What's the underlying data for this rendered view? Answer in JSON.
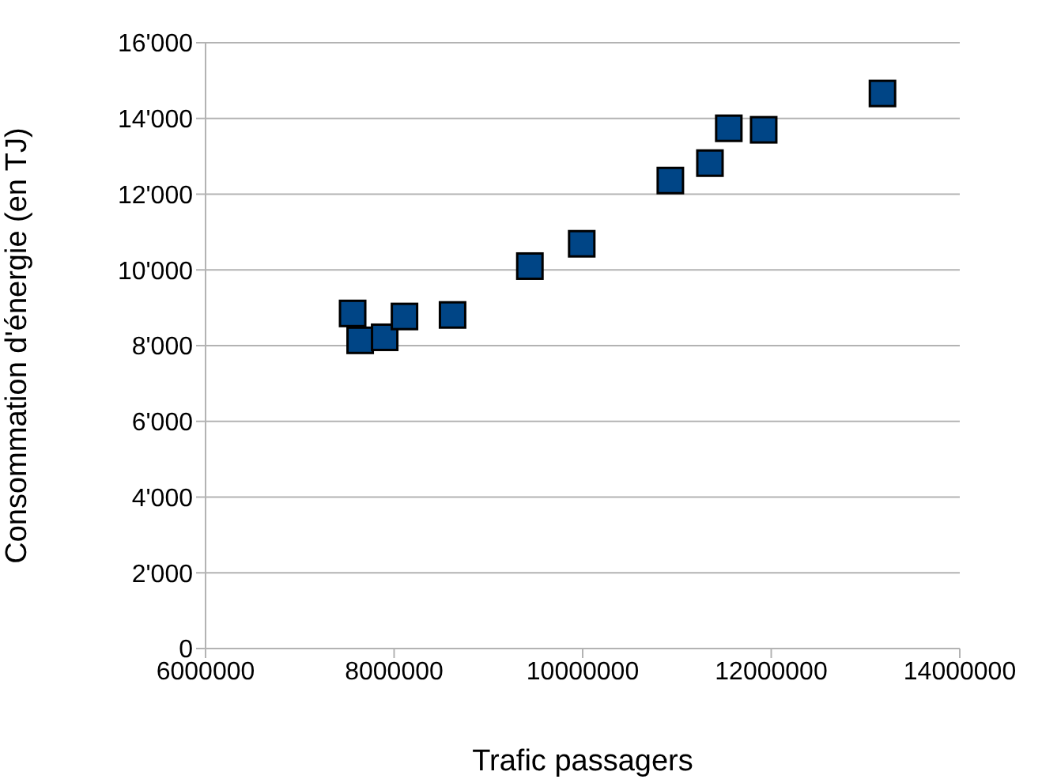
{
  "chart_data": {
    "type": "scatter",
    "xlabel": "Trafic passagers",
    "ylabel": "Consommation d'énergie (en TJ)",
    "x": [
      7560000,
      7640000,
      7900000,
      8110000,
      8620000,
      9440000,
      9990000,
      10930000,
      11350000,
      11550000,
      11920000,
      13180000
    ],
    "series": [
      {
        "color": "#004586",
        "values": [
          8850,
          8140,
          8220,
          8770,
          8810,
          10100,
          10690,
          12360,
          12820,
          13740,
          13700,
          14660
        ]
      }
    ],
    "xlim": [
      6000000,
      14000000
    ],
    "xticks": [
      6000000,
      8000000,
      10000000,
      12000000,
      14000000
    ],
    "ylim": [
      0,
      16000
    ],
    "yticks": [
      0,
      {
        "value": 2000,
        "label": "2'000"
      },
      {
        "value": 4000,
        "label": "4'000"
      },
      {
        "value": 6000,
        "label": "6'000"
      },
      {
        "value": 8000,
        "label": "8'000"
      },
      {
        "value": 10000,
        "label": "10'000"
      },
      {
        "value": 12000,
        "label": "12'000"
      },
      {
        "value": 14000,
        "label": "14'000"
      },
      {
        "value": 16000,
        "label": "16'000"
      }
    ],
    "grid": "y",
    "marker": "square",
    "legend": false
  }
}
